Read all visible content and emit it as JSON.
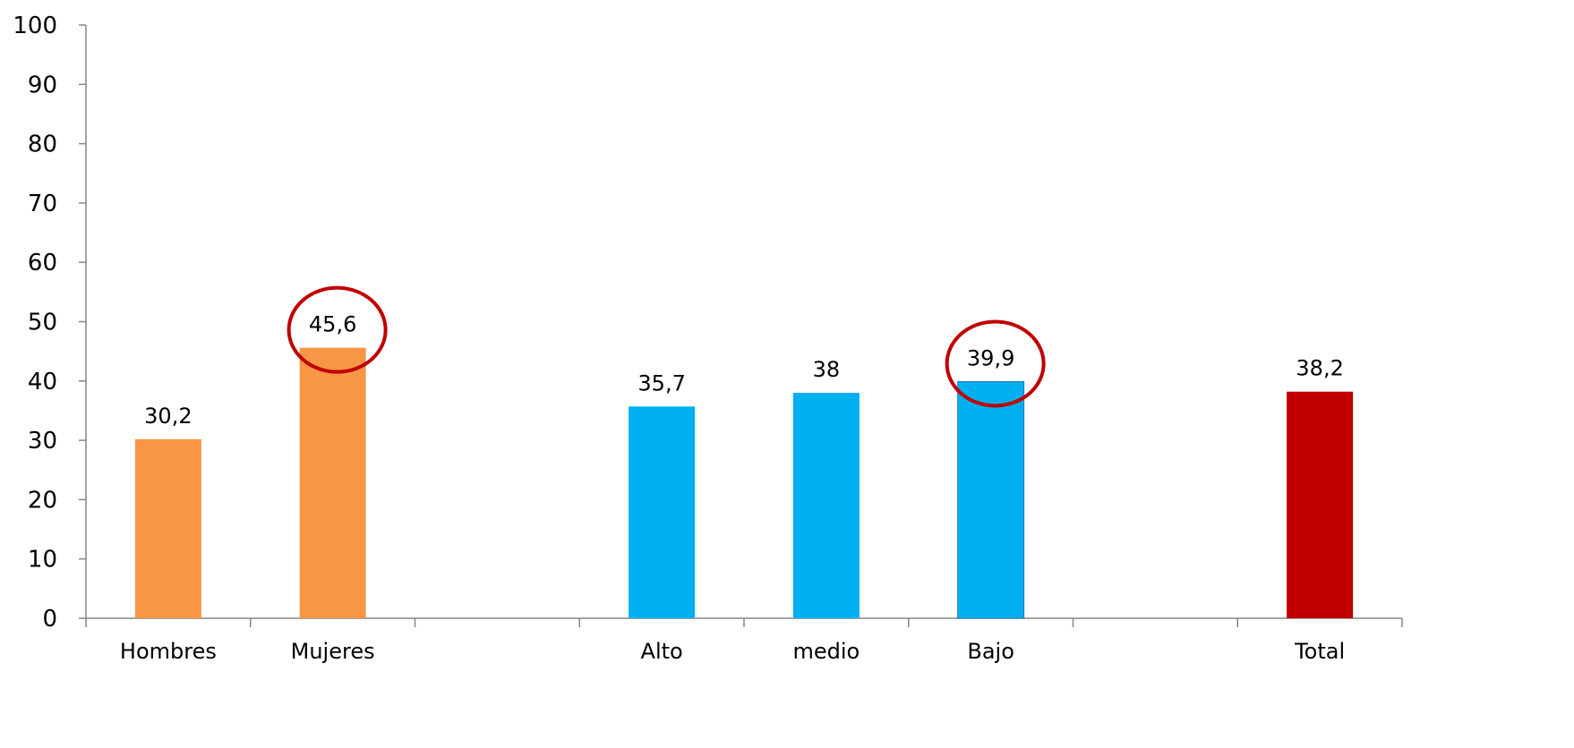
{
  "chart_data": {
    "type": "bar",
    "title": "",
    "xlabel": "",
    "ylabel": "",
    "ylim": [
      0,
      100
    ],
    "yticks": [
      0,
      10,
      20,
      30,
      40,
      50,
      60,
      70,
      80,
      90,
      100
    ],
    "grid": false,
    "legend": "none",
    "categories": [
      "Hombres",
      "Mujeres",
      "",
      "Alto",
      "medio",
      "Bajo",
      "",
      "Total"
    ],
    "values": [
      30.2,
      45.6,
      null,
      35.7,
      38,
      39.9,
      null,
      38.2
    ],
    "data_labels": [
      "30,2",
      "45,6",
      "",
      "35,7",
      "38",
      "39,9",
      "",
      "38,2"
    ],
    "bar_colors": [
      "#f79646",
      "#f79646",
      null,
      "#00b0f0",
      "#00b0f0",
      "#00b0f0",
      null,
      "#c00000"
    ],
    "highlighted": [
      "Mujeres",
      "Bajo"
    ],
    "highlight_color": "#c00000"
  }
}
